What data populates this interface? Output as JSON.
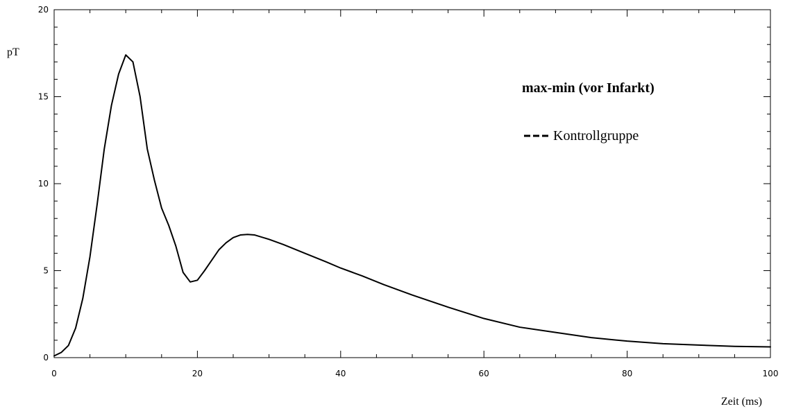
{
  "chart_data": {
    "type": "line",
    "title": "max-min (vor Infarkt)",
    "xlabel": "Zeit (ms)",
    "ylabel": "pT",
    "xlim": [
      0,
      100
    ],
    "ylim": [
      0,
      20
    ],
    "x_ticks": [
      0,
      20,
      40,
      60,
      80,
      100
    ],
    "x_tick_labels": [
      "0",
      "20",
      "40",
      "60",
      "80",
      "100"
    ],
    "y_ticks": [
      0,
      5,
      10,
      15,
      20
    ],
    "y_tick_labels": [
      "0",
      "5",
      "10",
      "15",
      "20"
    ],
    "grid": false,
    "legend_position": "top-right",
    "line_color": "#000000",
    "series": [
      {
        "name": "Kontrollgruppe",
        "x": [
          0,
          1,
          2,
          3,
          4,
          5,
          6,
          7,
          8,
          9,
          10,
          11,
          12,
          13,
          14,
          15,
          16,
          17,
          18,
          19,
          20,
          21,
          22,
          23,
          24,
          25,
          26,
          27,
          28,
          30,
          32,
          35,
          38,
          40,
          43,
          46,
          50,
          55,
          60,
          65,
          70,
          75,
          80,
          85,
          90,
          95,
          100
        ],
        "y": [
          0.1,
          0.3,
          0.7,
          1.7,
          3.4,
          5.8,
          8.8,
          12.0,
          14.5,
          16.3,
          17.4,
          17.0,
          15.0,
          12.0,
          10.2,
          8.6,
          7.6,
          6.4,
          4.9,
          4.35,
          4.45,
          5.0,
          5.6,
          6.2,
          6.6,
          6.9,
          7.05,
          7.08,
          7.05,
          6.8,
          6.5,
          6.0,
          5.5,
          5.15,
          4.7,
          4.2,
          3.6,
          2.9,
          2.25,
          1.75,
          1.45,
          1.15,
          0.95,
          0.8,
          0.72,
          0.65,
          0.62
        ]
      }
    ]
  }
}
